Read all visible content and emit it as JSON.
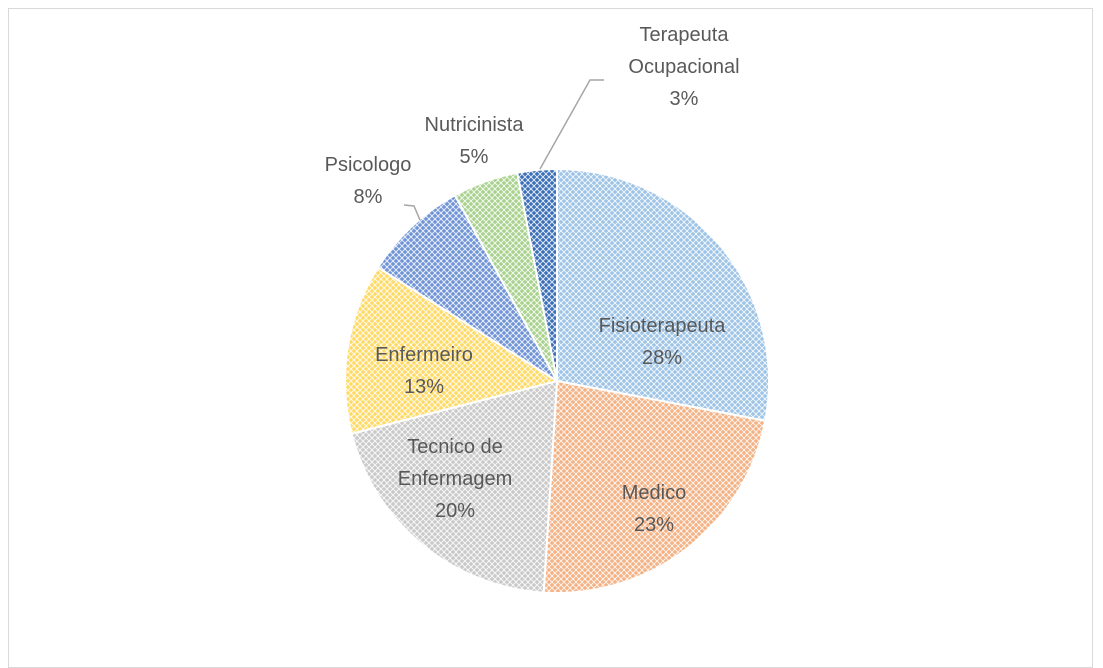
{
  "chart_data": {
    "type": "pie",
    "categories": [
      "Fisioterapeuta",
      "Medico",
      "Tecnico de Enfermagem",
      "Enfermeiro",
      "Psicologo",
      "Nutricinista",
      "Terapeuta Ocupacional"
    ],
    "values": [
      28,
      23,
      20,
      13,
      8,
      5,
      3
    ],
    "value_labels": [
      "28%",
      "23%",
      "20%",
      "13%",
      "8%",
      "5%",
      "3%"
    ],
    "colors": [
      "#9dc3e6",
      "#f4b183",
      "#c9c9c9",
      "#ffd966",
      "#6f93d6",
      "#a9d18e",
      "#3a6fb8"
    ]
  }
}
